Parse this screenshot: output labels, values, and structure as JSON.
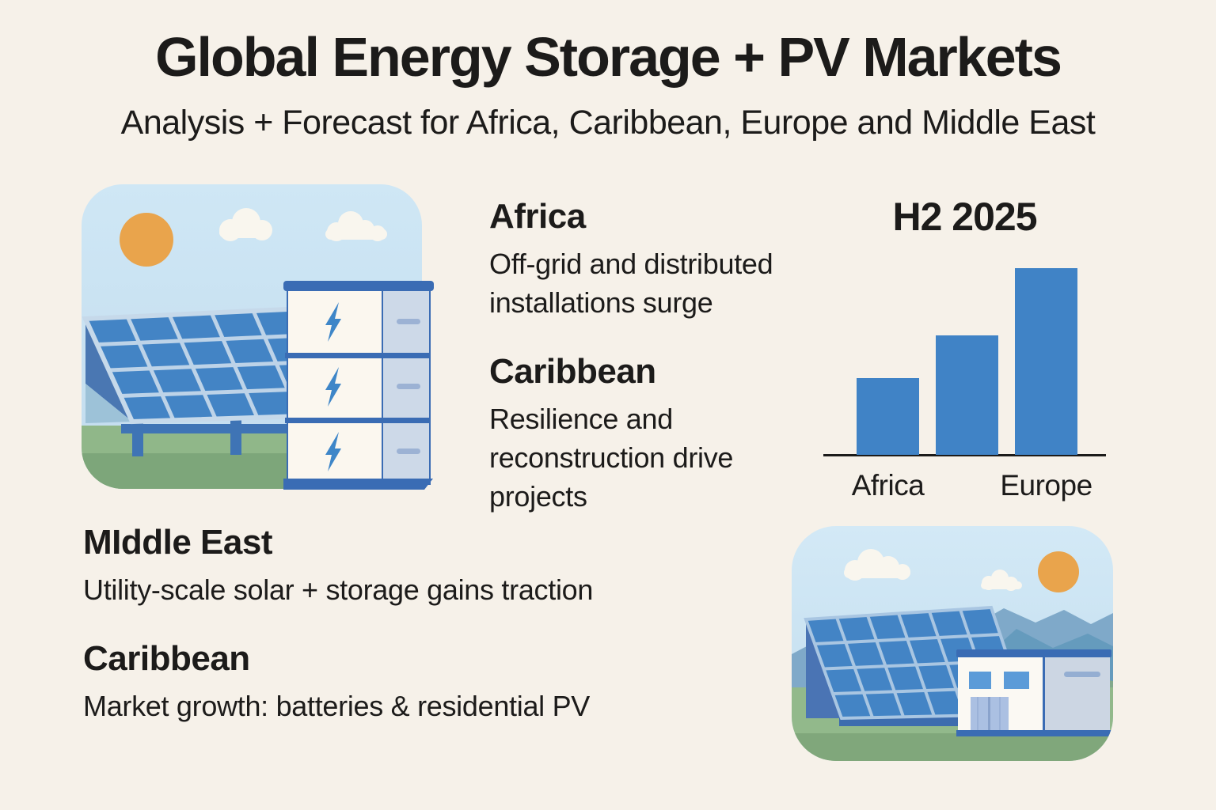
{
  "header": {
    "title": "Global Energy Storage + PV Markets",
    "subtitle": "Analysis + Forecast for Africa, Caribbean, Europe and Middle East"
  },
  "sections": [
    {
      "id": "africa",
      "heading": "Africa",
      "body": "Off-grid and distributed installations surge"
    },
    {
      "id": "caribbean-top",
      "heading": "Caribbean",
      "body": "Resilience and reconstruction drive projects"
    },
    {
      "id": "middle-east",
      "heading": "MIddle East",
      "body": "Utility-scale solar + storage gains traction"
    },
    {
      "id": "caribbean-bottom",
      "heading": "Caribbean",
      "body": "Market growth: batteries & residential PV"
    }
  ],
  "chart_data": {
    "type": "bar",
    "title": "H2 2025",
    "categories": [
      "Africa",
      "",
      "Europe"
    ],
    "values": [
      41,
      64,
      100
    ],
    "value_note": "relative index estimated from bar heights; no y-axis shown",
    "ylim": [
      0,
      100
    ],
    "grid": false,
    "legend": false,
    "bar_color": "#4083c6",
    "axis_color": "#1c1b1a"
  },
  "illustrations": {
    "top_left": {
      "alt": "Solar panel array under sun and clouds next to a three-module battery storage cabinet with lightning bolts"
    },
    "bottom_right": {
      "alt": "Solar panel array beside a storage building with mountains, clouds and sun"
    }
  },
  "colors": {
    "background": "#f6f1e9",
    "ink": "#1c1b1a",
    "bar_blue": "#4083c6",
    "sky": "#cfe7f5",
    "sun_orange": "#e9a44c",
    "panel_blue": "#4384c5",
    "panel_grid": "#bdd3e8",
    "grass_green": "#90b789",
    "battery_accent": "#3a6cb4",
    "bolt_blue": "#3e86c8",
    "mountain_blue": "#7fa9c9"
  }
}
